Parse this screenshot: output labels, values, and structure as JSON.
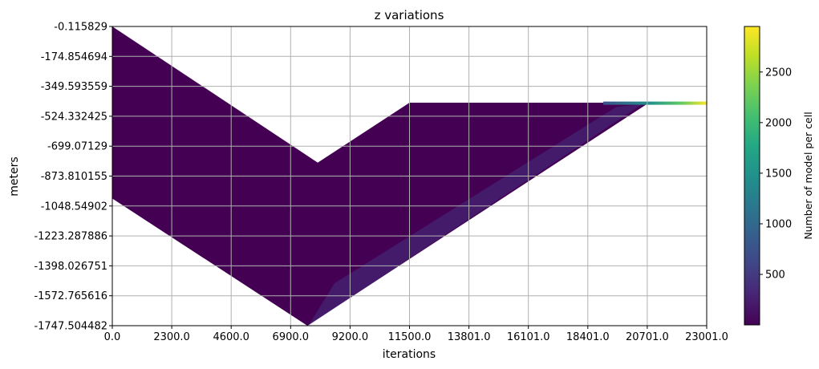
{
  "chart_data": {
    "type": "heatmap",
    "title": "z variations",
    "xlabel": "iterations",
    "ylabel": "meters",
    "colorbar_label": "Number of model per cell",
    "colormap": "viridis",
    "grid": true,
    "xlim": [
      0.0,
      23001.0
    ],
    "ylim": [
      -1747.504482,
      -0.115829
    ],
    "x_ticks": [
      "0.0",
      "2300.0",
      "4600.0",
      "6900.0",
      "9200.0",
      "11500.0",
      "13801.0",
      "16101.0",
      "18401.0",
      "20701.0",
      "23001.0"
    ],
    "y_ticks": [
      "-0.115829",
      "-174.854694",
      "-349.593559",
      "-524.332425",
      "-699.07129",
      "-873.810155",
      "-1048.54902",
      "-1223.287886",
      "-1398.026751",
      "-1572.765616",
      "-1747.504482"
    ],
    "colorbar_range": [
      1,
      2950
    ],
    "colorbar_ticks": [
      "500",
      "1000",
      "1500",
      "2000",
      "2500"
    ],
    "upper_boundary": [
      {
        "x": 0,
        "y": -0.12
      },
      {
        "x": 7950,
        "y": -795
      },
      {
        "x": 11500,
        "y": -445
      },
      {
        "x": 23001,
        "y": -445
      }
    ],
    "lower_boundary": [
      {
        "x": 0,
        "y": -1005
      },
      {
        "x": 7550,
        "y": -1747.5
      },
      {
        "x": 20701,
        "y": -452
      },
      {
        "x": 23001,
        "y": -452
      }
    ],
    "background_count": 30,
    "converged_band": {
      "x_start": 19000,
      "x_end": 23001,
      "y": -448,
      "count": 2950
    }
  }
}
